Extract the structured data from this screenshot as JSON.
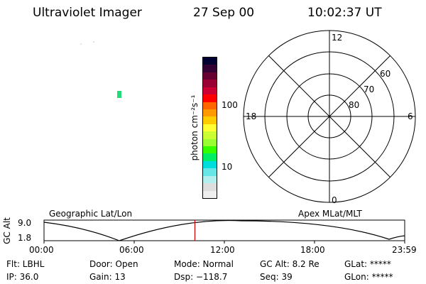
{
  "header": {
    "instrument": "Ultraviolet Imager",
    "date": "27 Sep 00",
    "time": "10:02:37 UT"
  },
  "colorbar": {
    "label": "photon cm⁻²s⁻¹",
    "ticks": [
      "100",
      "10"
    ],
    "colors": [
      "#000033",
      "#330033",
      "#660033",
      "#990033",
      "#cc0033",
      "#ff0000",
      "#ff6600",
      "#ff9900",
      "#ffcc00",
      "#ffff33",
      "#ccff33",
      "#99ff33",
      "#33ff00",
      "#00ee66",
      "#00dddd",
      "#66e6e6",
      "#b3eeee",
      "#dddddd",
      "#eeeeee"
    ]
  },
  "polar_plot": {
    "mlt_labels": {
      "top": "12",
      "bottom": "0",
      "left": "18",
      "right": "6"
    },
    "lat_labels": [
      "60",
      "70",
      "80"
    ]
  },
  "altitude_strip": {
    "axis_label": "GC Alt",
    "y_ticks": [
      "9.0",
      "1.8"
    ],
    "left_title": "Geographic Lat/Lon",
    "right_title": "Apex MLat/MLT",
    "x_ticks": [
      "00:00",
      "06:00",
      "12:00",
      "18:00",
      "23:59"
    ],
    "current_time_hours": 10.04,
    "marker_color": "#cc0000"
  },
  "info": {
    "filter": "Flt: LBHL",
    "ip": "IP: 36.0",
    "door": "Door: Open",
    "gain": "Gain: 13",
    "mode": "Mode: Normal",
    "dsp": "Dsp: −118.7",
    "gc_alt": "GC Alt: 8.2 Re",
    "seq": "Seq: 39",
    "glat": "GLat: *****",
    "glon": "GLon: *****"
  }
}
